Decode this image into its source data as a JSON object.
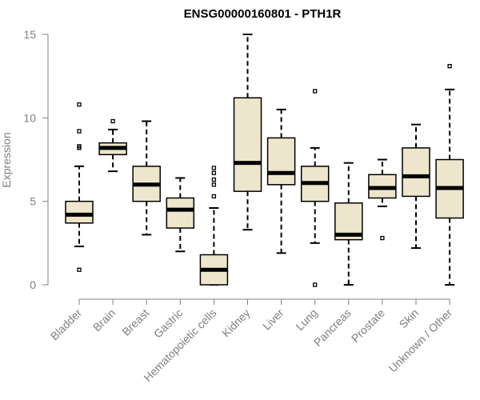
{
  "chart_data": {
    "type": "boxplot",
    "title": "ENSG00000160801 - PTH1R",
    "xlabel": "",
    "ylabel": "Expression",
    "ylim": [
      0,
      15
    ],
    "yticks": [
      0,
      5,
      10,
      15
    ],
    "categories": [
      "Bladder",
      "Brain",
      "Breast",
      "Gastric",
      "Hematopoietic cells",
      "Kidney",
      "Liver",
      "Lung",
      "Pancreas",
      "Prostate",
      "Skin",
      "Unknown / Other"
    ],
    "boxes": [
      {
        "name": "Bladder",
        "whisker_low": 2.3,
        "q1": 3.7,
        "median": 4.2,
        "q3": 5.0,
        "whisker_high": 7.1,
        "outliers": [
          0.9,
          8.2,
          8.3,
          9.2,
          10.8
        ]
      },
      {
        "name": "Brain",
        "whisker_low": 6.8,
        "q1": 7.8,
        "median": 8.2,
        "q3": 8.5,
        "whisker_high": 9.3,
        "outliers": [
          9.8
        ]
      },
      {
        "name": "Breast",
        "whisker_low": 3.0,
        "q1": 5.0,
        "median": 6.0,
        "q3": 7.1,
        "whisker_high": 9.8,
        "outliers": []
      },
      {
        "name": "Gastric",
        "whisker_low": 2.0,
        "q1": 3.4,
        "median": 4.5,
        "q3": 5.2,
        "whisker_high": 6.4,
        "outliers": []
      },
      {
        "name": "Hematopoietic cells",
        "whisker_low": 0.0,
        "q1": 0.0,
        "median": 0.9,
        "q3": 1.8,
        "whisker_high": 4.6,
        "outliers": [
          5.3,
          6.0,
          6.3,
          6.7,
          7.0
        ]
      },
      {
        "name": "Kidney",
        "whisker_low": 3.3,
        "q1": 5.6,
        "median": 7.3,
        "q3": 11.2,
        "whisker_high": 15.0,
        "outliers": []
      },
      {
        "name": "Liver",
        "whisker_low": 1.9,
        "q1": 6.0,
        "median": 6.7,
        "q3": 8.8,
        "whisker_high": 10.5,
        "outliers": []
      },
      {
        "name": "Lung",
        "whisker_low": 2.5,
        "q1": 5.0,
        "median": 6.1,
        "q3": 7.1,
        "whisker_high": 8.2,
        "outliers": [
          0.0,
          11.6
        ]
      },
      {
        "name": "Pancreas",
        "whisker_low": 0.0,
        "q1": 2.7,
        "median": 3.0,
        "q3": 4.9,
        "whisker_high": 7.3,
        "outliers": []
      },
      {
        "name": "Prostate",
        "whisker_low": 4.7,
        "q1": 5.2,
        "median": 5.8,
        "q3": 6.6,
        "whisker_high": 7.5,
        "outliers": [
          2.8
        ]
      },
      {
        "name": "Skin",
        "whisker_low": 2.2,
        "q1": 5.3,
        "median": 6.5,
        "q3": 8.2,
        "whisker_high": 9.6,
        "outliers": []
      },
      {
        "name": "Unknown / Other",
        "whisker_low": 0.0,
        "q1": 4.0,
        "median": 5.8,
        "q3": 7.5,
        "whisker_high": 11.7,
        "outliers": [
          13.1
        ]
      }
    ],
    "colors": {
      "box_fill": "#ede6cc",
      "box_stroke": "#000000",
      "axis": "#7f7f7f",
      "title": "#000000"
    },
    "grid": false,
    "legend": "none"
  }
}
